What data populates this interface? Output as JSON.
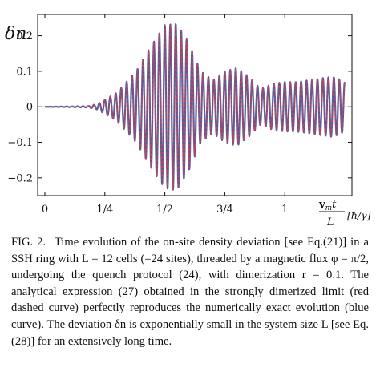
{
  "figure": {
    "ylabel": "δn",
    "xlabel_num": "v_m t",
    "xlabel_den": "L",
    "xlabel_unit": "[ħ/γ]",
    "series_colors": {
      "blue_curve": "#4a5fa8",
      "red_dashed_curve": "#d94040"
    }
  },
  "chart_data": {
    "type": "line",
    "title": "",
    "xlabel": "v_m t / L [ħ/γ]",
    "ylabel": "δn",
    "xlim": [
      -0.03,
      1.28
    ],
    "ylim": [
      -0.25,
      0.26
    ],
    "xticks": [
      0,
      0.25,
      0.5,
      0.75,
      1.0
    ],
    "xtick_labels": [
      "0",
      "1/4",
      "1/2",
      "3/4",
      "1"
    ],
    "yticks": [
      0.2,
      0.1,
      0,
      -0.1,
      -0.2
    ],
    "ytick_labels": [
      "0.2",
      "0.1",
      "0",
      "−0.1",
      "−0.2"
    ],
    "grid": false,
    "legend": "none",
    "envelope": {
      "x": [
        0,
        0.18,
        0.22,
        0.3,
        0.38,
        0.45,
        0.5,
        0.55,
        0.6,
        0.65,
        0.7,
        0.75,
        0.8,
        0.85,
        0.9,
        0.95,
        1.0,
        1.05,
        1.1,
        1.15,
        1.2,
        1.25
      ],
      "amplitude": [
        0,
        0.002,
        0.008,
        0.04,
        0.1,
        0.18,
        0.23,
        0.235,
        0.18,
        0.1,
        0.075,
        0.1,
        0.11,
        0.085,
        0.05,
        0.065,
        0.07,
        0.07,
        0.075,
        0.08,
        0.085,
        0.07
      ]
    },
    "oscillation_periods_per_unit_x": 44,
    "series": [
      {
        "color": "#4a5fa8",
        "style": "solid"
      },
      {
        "color": "#d94040",
        "style": "dashed"
      }
    ]
  },
  "caption": {
    "label": "FIG. 2.",
    "text": "Time evolution of the on-site density deviation [see Eq.(21)] in a SSH ring with L = 12 cells (=24 sites), threaded by a magnetic flux φ = π/2, undergoing the quench protocol (24), with dimerization r = 0.1. The analytical expression (27) obtained in the strongly dimerized limit (red dashed curve) perfectly reproduces the numerically exact evolution (blue curve). The deviation δn is exponentially small in the system size L [see Eq.(28)] for an extensively long time."
  }
}
